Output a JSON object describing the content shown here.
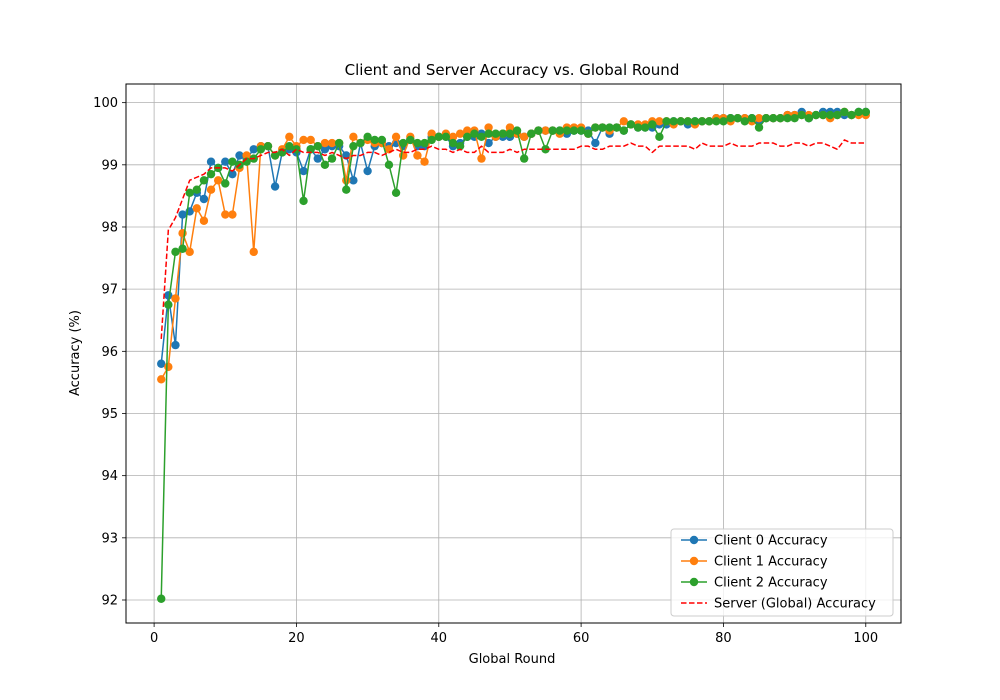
{
  "chart_data": {
    "type": "line",
    "title": "Client and Server Accuracy vs. Global Round",
    "xlabel": "Global Round",
    "ylabel": "Accuracy (%)",
    "xlim": [
      -3.95,
      104.95
    ],
    "ylim": [
      91.63,
      100.3
    ],
    "xticks": [
      0,
      20,
      40,
      60,
      80,
      100
    ],
    "yticks": [
      92,
      93,
      94,
      95,
      96,
      97,
      98,
      99,
      100
    ],
    "grid": true,
    "legend_position": "lower-right",
    "series": [
      {
        "name": "Client 0 Accuracy",
        "color": "#1f77b4",
        "style": "line-marker",
        "values": [
          95.8,
          96.9,
          96.1,
          98.2,
          98.25,
          98.55,
          98.45,
          99.05,
          98.95,
          99.05,
          98.85,
          99.15,
          99.1,
          99.25,
          99.3,
          99.3,
          98.65,
          99.2,
          99.25,
          99.2,
          98.9,
          99.25,
          99.1,
          99.25,
          99.3,
          99.3,
          99.15,
          98.75,
          99.35,
          98.9,
          99.3,
          99.35,
          99.3,
          99.35,
          99.3,
          99.4,
          99.3,
          99.3,
          99.45,
          99.45,
          99.45,
          99.3,
          99.35,
          99.45,
          99.45,
          99.5,
          99.35,
          99.45,
          99.45,
          99.45,
          99.5,
          99.45,
          99.5,
          99.55,
          99.55,
          99.55,
          99.55,
          99.5,
          99.55,
          99.55,
          99.55,
          99.35,
          99.6,
          99.5,
          99.6,
          99.55,
          99.65,
          99.6,
          99.6,
          99.6,
          99.65,
          99.65,
          99.7,
          99.7,
          99.65,
          99.7,
          99.7,
          99.7,
          99.75,
          99.75,
          99.75,
          99.75,
          99.75,
          99.75,
          99.7,
          99.75,
          99.75,
          99.75,
          99.8,
          99.8,
          99.85,
          99.75,
          99.8,
          99.85,
          99.85,
          99.85,
          99.8,
          99.8,
          99.85,
          99.85
        ]
      },
      {
        "name": "Client 1 Accuracy",
        "color": "#ff7f0e",
        "style": "line-marker",
        "values": [
          95.55,
          95.75,
          96.85,
          97.9,
          97.6,
          98.3,
          98.1,
          98.6,
          98.75,
          98.2,
          98.2,
          98.95,
          99.15,
          97.6,
          99.3,
          99.3,
          99.15,
          99.25,
          99.45,
          99.3,
          99.4,
          99.4,
          99.3,
          99.35,
          99.35,
          99.35,
          98.75,
          99.45,
          99.35,
          99.4,
          99.35,
          99.35,
          99.25,
          99.45,
          99.15,
          99.45,
          99.15,
          99.05,
          99.5,
          99.45,
          99.5,
          99.45,
          99.5,
          99.55,
          99.55,
          99.1,
          99.6,
          99.45,
          99.5,
          99.6,
          99.5,
          99.45,
          99.5,
          99.55,
          99.55,
          99.55,
          99.5,
          99.6,
          99.6,
          99.6,
          99.5,
          99.6,
          99.6,
          99.55,
          99.6,
          99.7,
          99.65,
          99.65,
          99.65,
          99.7,
          99.7,
          99.7,
          99.65,
          99.7,
          99.7,
          99.65,
          99.7,
          99.7,
          99.75,
          99.75,
          99.7,
          99.75,
          99.75,
          99.7,
          99.75,
          99.75,
          99.75,
          99.75,
          99.8,
          99.8,
          99.8,
          99.8,
          99.8,
          99.8,
          99.75,
          99.8,
          99.85,
          99.8,
          99.8,
          99.8
        ]
      },
      {
        "name": "Client 2 Accuracy",
        "color": "#2ca02c",
        "style": "line-marker",
        "values": [
          92.02,
          96.75,
          97.6,
          97.65,
          98.55,
          98.6,
          98.75,
          98.85,
          98.95,
          98.7,
          99.05,
          99.0,
          99.05,
          99.1,
          99.25,
          99.3,
          99.15,
          99.2,
          99.3,
          99.25,
          98.42,
          99.25,
          99.3,
          99.0,
          99.1,
          99.35,
          98.6,
          99.3,
          99.35,
          99.45,
          99.4,
          99.4,
          99.0,
          98.55,
          99.35,
          99.4,
          99.35,
          99.35,
          99.4,
          99.45,
          99.45,
          99.35,
          99.3,
          99.45,
          99.5,
          99.45,
          99.5,
          99.5,
          99.5,
          99.5,
          99.55,
          99.1,
          99.5,
          99.55,
          99.25,
          99.55,
          99.55,
          99.55,
          99.55,
          99.55,
          99.5,
          99.6,
          99.6,
          99.6,
          99.6,
          99.55,
          99.65,
          99.6,
          99.6,
          99.65,
          99.45,
          99.7,
          99.7,
          99.7,
          99.7,
          99.7,
          99.7,
          99.7,
          99.7,
          99.7,
          99.75,
          99.75,
          99.7,
          99.75,
          99.6,
          99.75,
          99.75,
          99.75,
          99.75,
          99.75,
          99.8,
          99.75,
          99.8,
          99.8,
          99.8,
          99.8,
          99.85,
          99.8,
          99.85,
          99.85
        ]
      },
      {
        "name": "Server (Global) Accuracy",
        "color": "#ff0000",
        "style": "dashed",
        "values": [
          96.2,
          97.95,
          98.15,
          98.45,
          98.75,
          98.8,
          98.85,
          98.95,
          98.95,
          98.95,
          98.9,
          99.0,
          99.1,
          99.1,
          99.15,
          99.2,
          99.2,
          99.25,
          99.15,
          99.25,
          99.2,
          99.2,
          99.2,
          99.15,
          99.2,
          99.15,
          99.1,
          99.15,
          99.15,
          99.2,
          99.2,
          99.15,
          99.2,
          99.25,
          99.2,
          99.2,
          99.25,
          99.25,
          99.3,
          99.25,
          99.25,
          99.2,
          99.25,
          99.2,
          99.2,
          99.3,
          99.2,
          99.2,
          99.2,
          99.25,
          99.2,
          99.25,
          99.25,
          99.25,
          99.25,
          99.25,
          99.25,
          99.25,
          99.25,
          99.3,
          99.3,
          99.25,
          99.25,
          99.3,
          99.3,
          99.3,
          99.35,
          99.3,
          99.3,
          99.2,
          99.3,
          99.3,
          99.3,
          99.3,
          99.3,
          99.25,
          99.35,
          99.3,
          99.3,
          99.3,
          99.35,
          99.3,
          99.3,
          99.3,
          99.35,
          99.35,
          99.35,
          99.3,
          99.3,
          99.35,
          99.35,
          99.3,
          99.35,
          99.35,
          99.3,
          99.25,
          99.4,
          99.35,
          99.35,
          99.35
        ]
      }
    ]
  }
}
